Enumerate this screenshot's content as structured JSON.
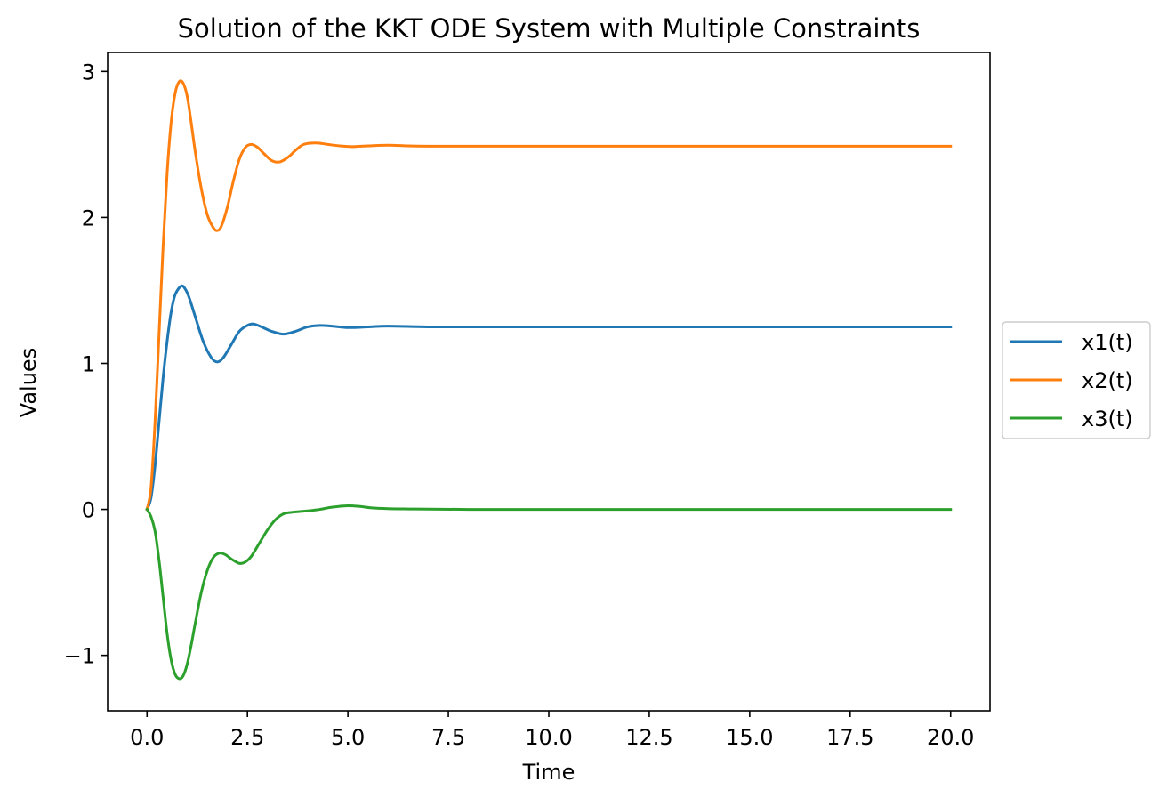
{
  "chart_data": {
    "type": "line",
    "title": "Solution of the KKT ODE System with Multiple Constraints",
    "xlabel": "Time",
    "ylabel": "Values",
    "xlim": [
      -0.98,
      20.98
    ],
    "ylim": [
      -1.38,
      3.13
    ],
    "xticks": [
      0,
      2.5,
      5,
      7.5,
      10,
      12.5,
      15,
      17.5,
      20
    ],
    "xtick_labels": [
      "0.0",
      "2.5",
      "5.0",
      "7.5",
      "10.0",
      "12.5",
      "15.0",
      "17.5",
      "20.0"
    ],
    "yticks": [
      -1,
      0,
      1,
      2,
      3
    ],
    "ytick_labels": [
      "−1",
      "0",
      "1",
      "2",
      "3"
    ],
    "grid": false,
    "legend_position": "outside-right",
    "series": [
      {
        "name": "x1(t)",
        "color": "#1f77b4",
        "x": [
          0,
          0.1,
          0.2,
          0.3,
          0.4,
          0.5,
          0.6,
          0.7,
          0.85,
          0.95,
          1.05,
          1.2,
          1.4,
          1.6,
          1.75,
          1.9,
          2.1,
          2.3,
          2.5,
          2.65,
          2.85,
          3.1,
          3.4,
          3.7,
          4.0,
          4.3,
          4.6,
          5.0,
          5.5,
          6.0,
          7.0,
          8.0,
          10.0,
          12.5,
          15.0,
          17.5,
          20.0
        ],
        "y": [
          0,
          0.08,
          0.3,
          0.6,
          0.9,
          1.15,
          1.35,
          1.47,
          1.53,
          1.51,
          1.45,
          1.32,
          1.15,
          1.04,
          1.01,
          1.04,
          1.13,
          1.22,
          1.26,
          1.27,
          1.25,
          1.22,
          1.2,
          1.22,
          1.25,
          1.26,
          1.255,
          1.245,
          1.25,
          1.255,
          1.25,
          1.25,
          1.25,
          1.25,
          1.25,
          1.25,
          1.25
        ]
      },
      {
        "name": "x2(t)",
        "color": "#ff7f0e",
        "x": [
          0,
          0.1,
          0.2,
          0.3,
          0.4,
          0.5,
          0.6,
          0.7,
          0.8,
          0.9,
          1.0,
          1.1,
          1.2,
          1.35,
          1.5,
          1.65,
          1.75,
          1.85,
          2.0,
          2.15,
          2.3,
          2.45,
          2.6,
          2.75,
          2.9,
          3.1,
          3.3,
          3.5,
          3.7,
          3.9,
          4.2,
          4.5,
          4.8,
          5.1,
          5.5,
          6.0,
          6.5,
          7.0,
          8.0,
          10.0,
          12.5,
          15.0,
          17.5,
          20.0
        ],
        "y": [
          0,
          0.15,
          0.6,
          1.2,
          1.8,
          2.3,
          2.65,
          2.85,
          2.93,
          2.92,
          2.83,
          2.65,
          2.45,
          2.2,
          2.02,
          1.93,
          1.91,
          1.94,
          2.07,
          2.25,
          2.4,
          2.48,
          2.5,
          2.48,
          2.44,
          2.39,
          2.38,
          2.41,
          2.46,
          2.5,
          2.51,
          2.5,
          2.49,
          2.485,
          2.49,
          2.495,
          2.49,
          2.488,
          2.488,
          2.488,
          2.488,
          2.488,
          2.488,
          2.488
        ]
      },
      {
        "name": "x3(t)",
        "color": "#2ca02c",
        "x": [
          0,
          0.1,
          0.2,
          0.3,
          0.4,
          0.5,
          0.6,
          0.7,
          0.8,
          0.9,
          1.0,
          1.1,
          1.2,
          1.35,
          1.5,
          1.65,
          1.8,
          1.95,
          2.1,
          2.3,
          2.45,
          2.6,
          2.8,
          3.0,
          3.2,
          3.4,
          3.6,
          3.8,
          4.0,
          4.3,
          4.6,
          5.0,
          5.3,
          5.6,
          6.0,
          6.5,
          7.0,
          8.0,
          10.0,
          12.5,
          15.0,
          17.5,
          20.0
        ],
        "y": [
          0,
          -0.05,
          -0.15,
          -0.35,
          -0.6,
          -0.85,
          -1.03,
          -1.13,
          -1.16,
          -1.14,
          -1.06,
          -0.93,
          -0.78,
          -0.57,
          -0.42,
          -0.33,
          -0.3,
          -0.31,
          -0.34,
          -0.37,
          -0.36,
          -0.32,
          -0.23,
          -0.14,
          -0.07,
          -0.03,
          -0.02,
          -0.015,
          -0.01,
          0.0,
          0.015,
          0.025,
          0.02,
          0.01,
          0.005,
          0.003,
          0.002,
          0.0,
          0.0,
          0.0,
          0.0,
          0.0,
          0.0
        ]
      }
    ]
  }
}
